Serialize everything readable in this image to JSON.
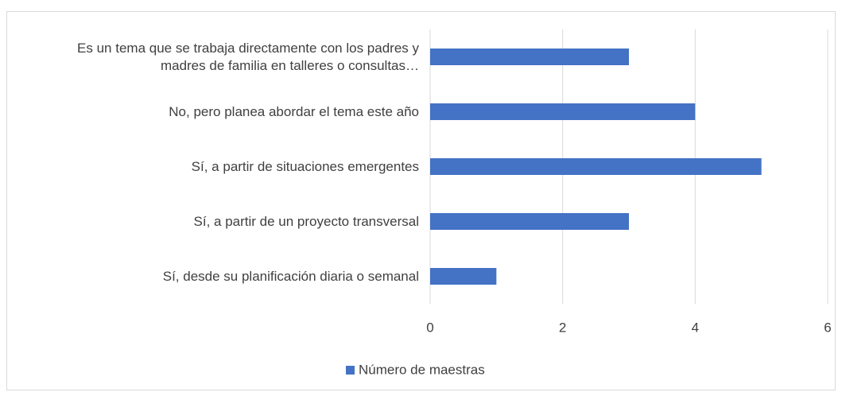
{
  "chart_data": {
    "type": "bar",
    "orientation": "horizontal",
    "categories": [
      "Es un tema que se trabaja directamente con los padres y madres de familia en talleres o consultas…",
      "No, pero planea abordar el tema este año",
      "Sí, a partir de situaciones emergentes",
      "Sí, a partir de un proyecto transversal",
      "Sí, desde su planificación diaria o semanal"
    ],
    "series": [
      {
        "name": "Número de maestras",
        "color": "#4472c4",
        "values": [
          3,
          4,
          5,
          3,
          1
        ]
      }
    ],
    "xlim": [
      0,
      6
    ],
    "xticks": [
      0,
      2,
      4,
      6
    ],
    "grid": true,
    "legend": "bottom"
  }
}
